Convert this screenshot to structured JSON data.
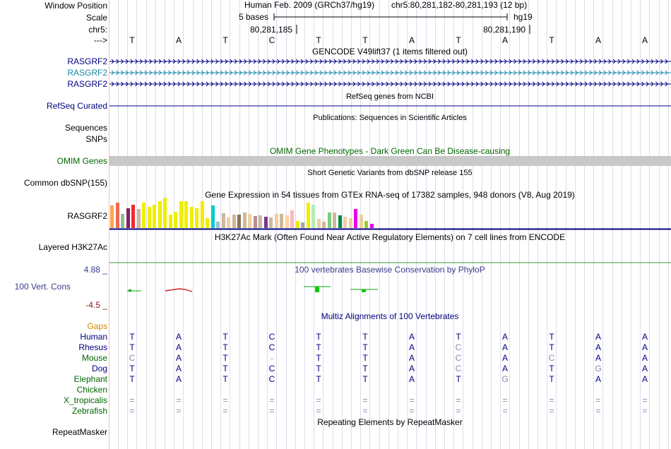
{
  "header": {
    "assembly": "Human Feb. 2009 (GRCh37/hg19)",
    "position": "chr5:80,281,182-80,281,193 (12 bp)",
    "scale_label": "5 bases",
    "scale_db": "hg19",
    "coord_left": "80,281,185",
    "coord_right": "80,281,190",
    "arrow": "--->"
  },
  "labels": {
    "window_position": "Window Position",
    "scale": "Scale",
    "chr": "chr5:",
    "rasgrf2": "RASGRF2",
    "refseq_curated": "RefSeq Curated",
    "sequences": "Sequences",
    "snps": "SNPs",
    "omim_genes": "OMIM Genes",
    "common_dbsnp": "Common dbSNP(155)",
    "gtex_rasgrf2": "RASGRF2",
    "layered_h3k27ac": "Layered H3K27Ac",
    "cons_max": "4.88 _",
    "vert_cons": "100 Vert. Cons",
    "cons_min": "-4.5 _",
    "gaps": "Gaps",
    "repeatmasker": "RepeatMasker"
  },
  "titles": {
    "gencode": "GENCODE V49lift37 (1 items filtered out)",
    "refseq": "RefSeq genes from NCBI",
    "publications": "Publications: Sequences in Scientific Articles",
    "omim": "OMIM Gene Phenotypes - Dark Green Can Be Disease-causing",
    "dbsnp": "Short Genetic Variants from dbSNP release 155",
    "gtex": "Gene Expression in 54 tissues from GTEx RNA-seq of 17382 samples, 948 donors (V8, Aug 2019)",
    "h3k27ac": "H3K27Ac Mark (Often Found Near Active Regulatory Elements) on 7 cell lines from ENCODE",
    "phylop": "100 vertebrates Basewise Conservation by PhyloP",
    "multiz": "Multiz Alignments of 100 Vertebrates",
    "repeat": "Repeating Elements by RepeatMasker"
  },
  "sequence": [
    "T",
    "A",
    "T",
    "C",
    "T",
    "T",
    "A",
    "T",
    "A",
    "T",
    "A",
    "A"
  ],
  "species": [
    {
      "name": "Human",
      "color": "#000080",
      "bases": [
        "T",
        "A",
        "T",
        "C",
        "T",
        "T",
        "A",
        "T",
        "A",
        "T",
        "A",
        "A"
      ],
      "gray": []
    },
    {
      "name": "Rhesus",
      "color": "#000080",
      "bases": [
        "T",
        "A",
        "T",
        "C",
        "T",
        "T",
        "A",
        "C",
        "A",
        "T",
        "A",
        "A"
      ],
      "gray": [
        7
      ]
    },
    {
      "name": "Mouse",
      "color": "#006600",
      "bases": [
        "C",
        "A",
        "T",
        "-",
        "T",
        "T",
        "A",
        "C",
        "A",
        "C",
        "A",
        "A"
      ],
      "gray": [
        0,
        3,
        7,
        9
      ]
    },
    {
      "name": "Dog",
      "color": "#000080",
      "bases": [
        "T",
        "A",
        "T",
        "C",
        "T",
        "T",
        "A",
        "C",
        "A",
        "T",
        "G",
        "A"
      ],
      "gray": [
        7,
        10
      ]
    },
    {
      "name": "Elephant",
      "color": "#006600",
      "bases": [
        "T",
        "A",
        "T",
        "C",
        "T",
        "T",
        "A",
        "T",
        "G",
        "T",
        "A",
        "A"
      ],
      "gray": [
        8
      ]
    },
    {
      "name": "Chicken",
      "color": "#006600",
      "bases": [],
      "gray": []
    },
    {
      "name": "X_tropicalis",
      "color": "#006600",
      "bases": [
        "=",
        "=",
        "=",
        "=",
        "=",
        "=",
        "=",
        "=",
        "=",
        "=",
        "=",
        "="
      ],
      "gray": [
        0,
        1,
        2,
        3,
        4,
        5,
        6,
        7,
        8,
        9,
        10,
        11
      ]
    },
    {
      "name": "Zebrafish",
      "color": "#006600",
      "bases": [
        "=",
        "=",
        "=",
        "=",
        "=",
        "=",
        "=",
        "=",
        "=",
        "=",
        "=",
        "="
      ],
      "gray": [
        0,
        1,
        2,
        3,
        4,
        5,
        6,
        7,
        8,
        9,
        10,
        11
      ]
    }
  ],
  "gtex_bars": {
    "values": [
      32,
      36,
      20,
      28,
      33,
      27,
      36,
      30,
      33,
      38,
      43,
      19,
      23,
      38,
      38,
      30,
      28,
      38,
      14,
      32,
      9,
      21,
      15,
      19,
      19,
      22,
      20,
      17,
      18,
      16,
      15,
      20,
      20,
      18,
      25,
      10,
      8,
      36,
      33,
      13,
      9,
      22,
      22,
      18,
      16,
      14,
      27,
      19,
      10,
      6
    ],
    "colors": [
      "#ffa54f",
      "#ee6a50",
      "#8fbc8f",
      "#8b1c62",
      "#ee2c2c",
      "#cdb79e",
      "#eeee00",
      "#eeee00",
      "#eeee00",
      "#eeee00",
      "#eeee00",
      "#eeee00",
      "#eeee00",
      "#eeee00",
      "#eeee00",
      "#eeee00",
      "#eeee00",
      "#eeee00",
      "#eeee00",
      "#00cdcd",
      "#9ac0cd",
      "#cdb79e",
      "#eecfa1",
      "#cdb79e",
      "#8b7355",
      "#cdb79e",
      "#eecfa1",
      "#bc8f8f",
      "#cdb79e",
      "#7a378b",
      "#cdb79e",
      "#eecfa1",
      "#cdb79e",
      "#ffd39b",
      "#ffb6c1",
      "#eeee00",
      "#a6a6a6",
      "#eeee00",
      "#b4eeb4",
      "#eecfa1",
      "#cdb79e",
      "#7ccd7c",
      "#cdb79e",
      "#008b45",
      "#eecfa1",
      "#eecfa1",
      "#ee00ee",
      "#eecfa1",
      "#9acd32",
      "#ee00ee"
    ]
  },
  "colors": {
    "navy": "#000080",
    "teal": "#1a8aa8",
    "omim_green": "#006600",
    "omim_bar": "#c8c8c8",
    "gaps": "#d68a00",
    "cons_label": "#3a3a8c",
    "cons_neg": "#8b1a1a"
  }
}
